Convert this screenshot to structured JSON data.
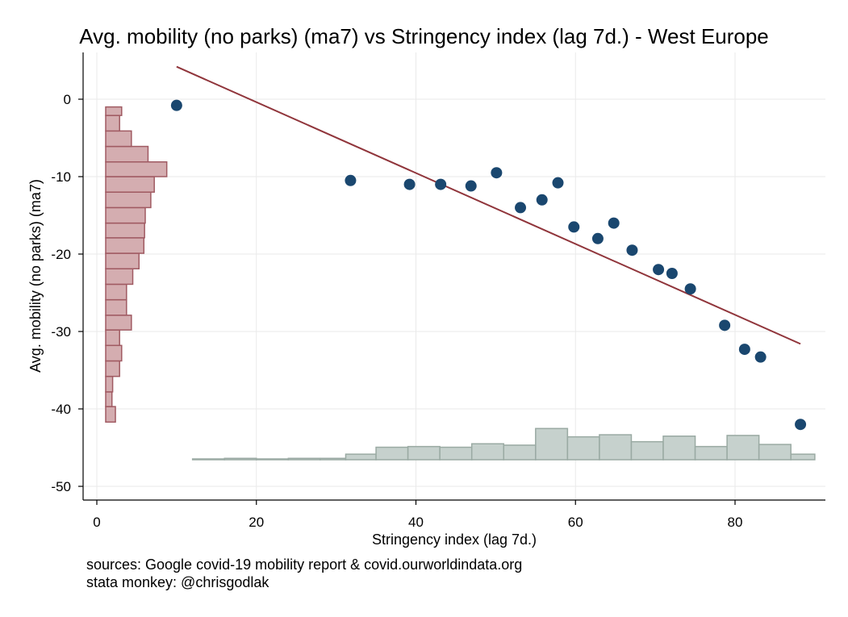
{
  "title": "Avg. mobility (no parks) (ma7) vs Stringency index (lag 7d.) - West Europe",
  "sources": [
    "sources: Google covid-19 mobility report & covid.ourworldindata.org",
    "stata monkey: @chrisgodlak"
  ],
  "colors": {
    "points": "#1a476f",
    "fit_line": "#90353b",
    "y_hist_fill": "#d4adb0",
    "y_hist_stroke": "#a05a62",
    "x_hist_fill": "#c6d1cd",
    "x_hist_stroke": "#9aaaa3",
    "grid": "#eaeaea"
  },
  "chart_data": {
    "type": "scatter",
    "xlabel": "Stringency index (lag 7d.)",
    "ylabel": "Avg. mobility (no parks) (ma7)",
    "xlim": [
      0,
      90
    ],
    "ylim": [
      -51,
      6
    ],
    "xticks": [
      0,
      20,
      40,
      60,
      80
    ],
    "yticks": [
      0,
      -10,
      -20,
      -30,
      -40,
      -50
    ],
    "grid": true,
    "points": [
      {
        "x": 10,
        "y": -0.8
      },
      {
        "x": 31.8,
        "y": -10.5
      },
      {
        "x": 39.2,
        "y": -11
      },
      {
        "x": 43.1,
        "y": -11
      },
      {
        "x": 46.9,
        "y": -11.2
      },
      {
        "x": 50.1,
        "y": -9.5
      },
      {
        "x": 53.1,
        "y": -14
      },
      {
        "x": 55.8,
        "y": -13
      },
      {
        "x": 57.8,
        "y": -10.8
      },
      {
        "x": 59.8,
        "y": -16.5
      },
      {
        "x": 62.8,
        "y": -18
      },
      {
        "x": 64.8,
        "y": -16
      },
      {
        "x": 67.1,
        "y": -19.5
      },
      {
        "x": 70.4,
        "y": -22
      },
      {
        "x": 72.1,
        "y": -22.5
      },
      {
        "x": 74.4,
        "y": -24.5
      },
      {
        "x": 78.7,
        "y": -29.2
      },
      {
        "x": 81.2,
        "y": -32.3
      },
      {
        "x": 83.2,
        "y": -33.3
      },
      {
        "x": 88.2,
        "y": -42
      }
    ],
    "fit_line": {
      "x": [
        10,
        88.2
      ],
      "y": [
        4.2,
        -31.6
      ]
    },
    "y_marginal_histogram": {
      "bin_edges": [
        -41.7,
        -39.7,
        -37.8,
        -35.8,
        -33.8,
        -31.8,
        -29.8,
        -27.9,
        -25.9,
        -23.9,
        -21.9,
        -19.9,
        -17.9,
        -16,
        -14,
        -12,
        -10,
        -8.1,
        -6.1,
        -4.1,
        -2.1,
        -1
      ],
      "counts": [
        1.4,
        0.9,
        1,
        2,
        2.3,
        2,
        3.7,
        3,
        3,
        3.9,
        4.8,
        5.5,
        5.6,
        5.7,
        6.5,
        7,
        8.8,
        6.1,
        3.7,
        2,
        2.3
      ]
    },
    "x_marginal_histogram": {
      "bin_edges": [
        12,
        16,
        20,
        24,
        28,
        31.2,
        35,
        39,
        43,
        47,
        51,
        55,
        59,
        63,
        67,
        71,
        75,
        79,
        83,
        87,
        90
      ],
      "counts": [
        0.1,
        0.2,
        0.1,
        0.2,
        0.2,
        0.8,
        1.8,
        1.9,
        1.8,
        2.3,
        2.1,
        4.5,
        3.3,
        3.6,
        2.6,
        3.4,
        1.9,
        3.5,
        2.2,
        0.8
      ]
    }
  }
}
